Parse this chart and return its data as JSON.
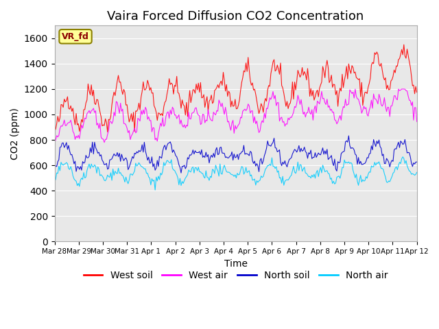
{
  "title": "Vaira Forced Diffusion CO2 Concentration",
  "xlabel": "Time",
  "ylabel": "CO2 (ppm)",
  "ylim": [
    0,
    1700
  ],
  "yticks": [
    0,
    200,
    400,
    600,
    800,
    1000,
    1200,
    1400,
    1600
  ],
  "legend_label": "VR_fd",
  "series": {
    "west_soil": {
      "color": "#ff0000",
      "label": "West soil"
    },
    "west_air": {
      "color": "#ff00ff",
      "label": "West air"
    },
    "north_soil": {
      "color": "#0000cc",
      "label": "North soil"
    },
    "north_air": {
      "color": "#00ccff",
      "label": "North air"
    }
  },
  "x_tick_labels": [
    "Mar 28",
    "Mar 29",
    "Mar 30",
    "Mar 31",
    "Apr 1",
    "Apr 2",
    "Apr 3",
    "Apr 4",
    "Apr 5",
    "Apr 6",
    "Apr 7",
    "Apr 8",
    "Apr 9",
    "Apr 10",
    "Apr 11",
    "Apr 12"
  ],
  "n_points": 336,
  "background_color": "#e8e8e8",
  "title_fontsize": 13,
  "axis_fontsize": 10,
  "legend_fontsize": 10
}
